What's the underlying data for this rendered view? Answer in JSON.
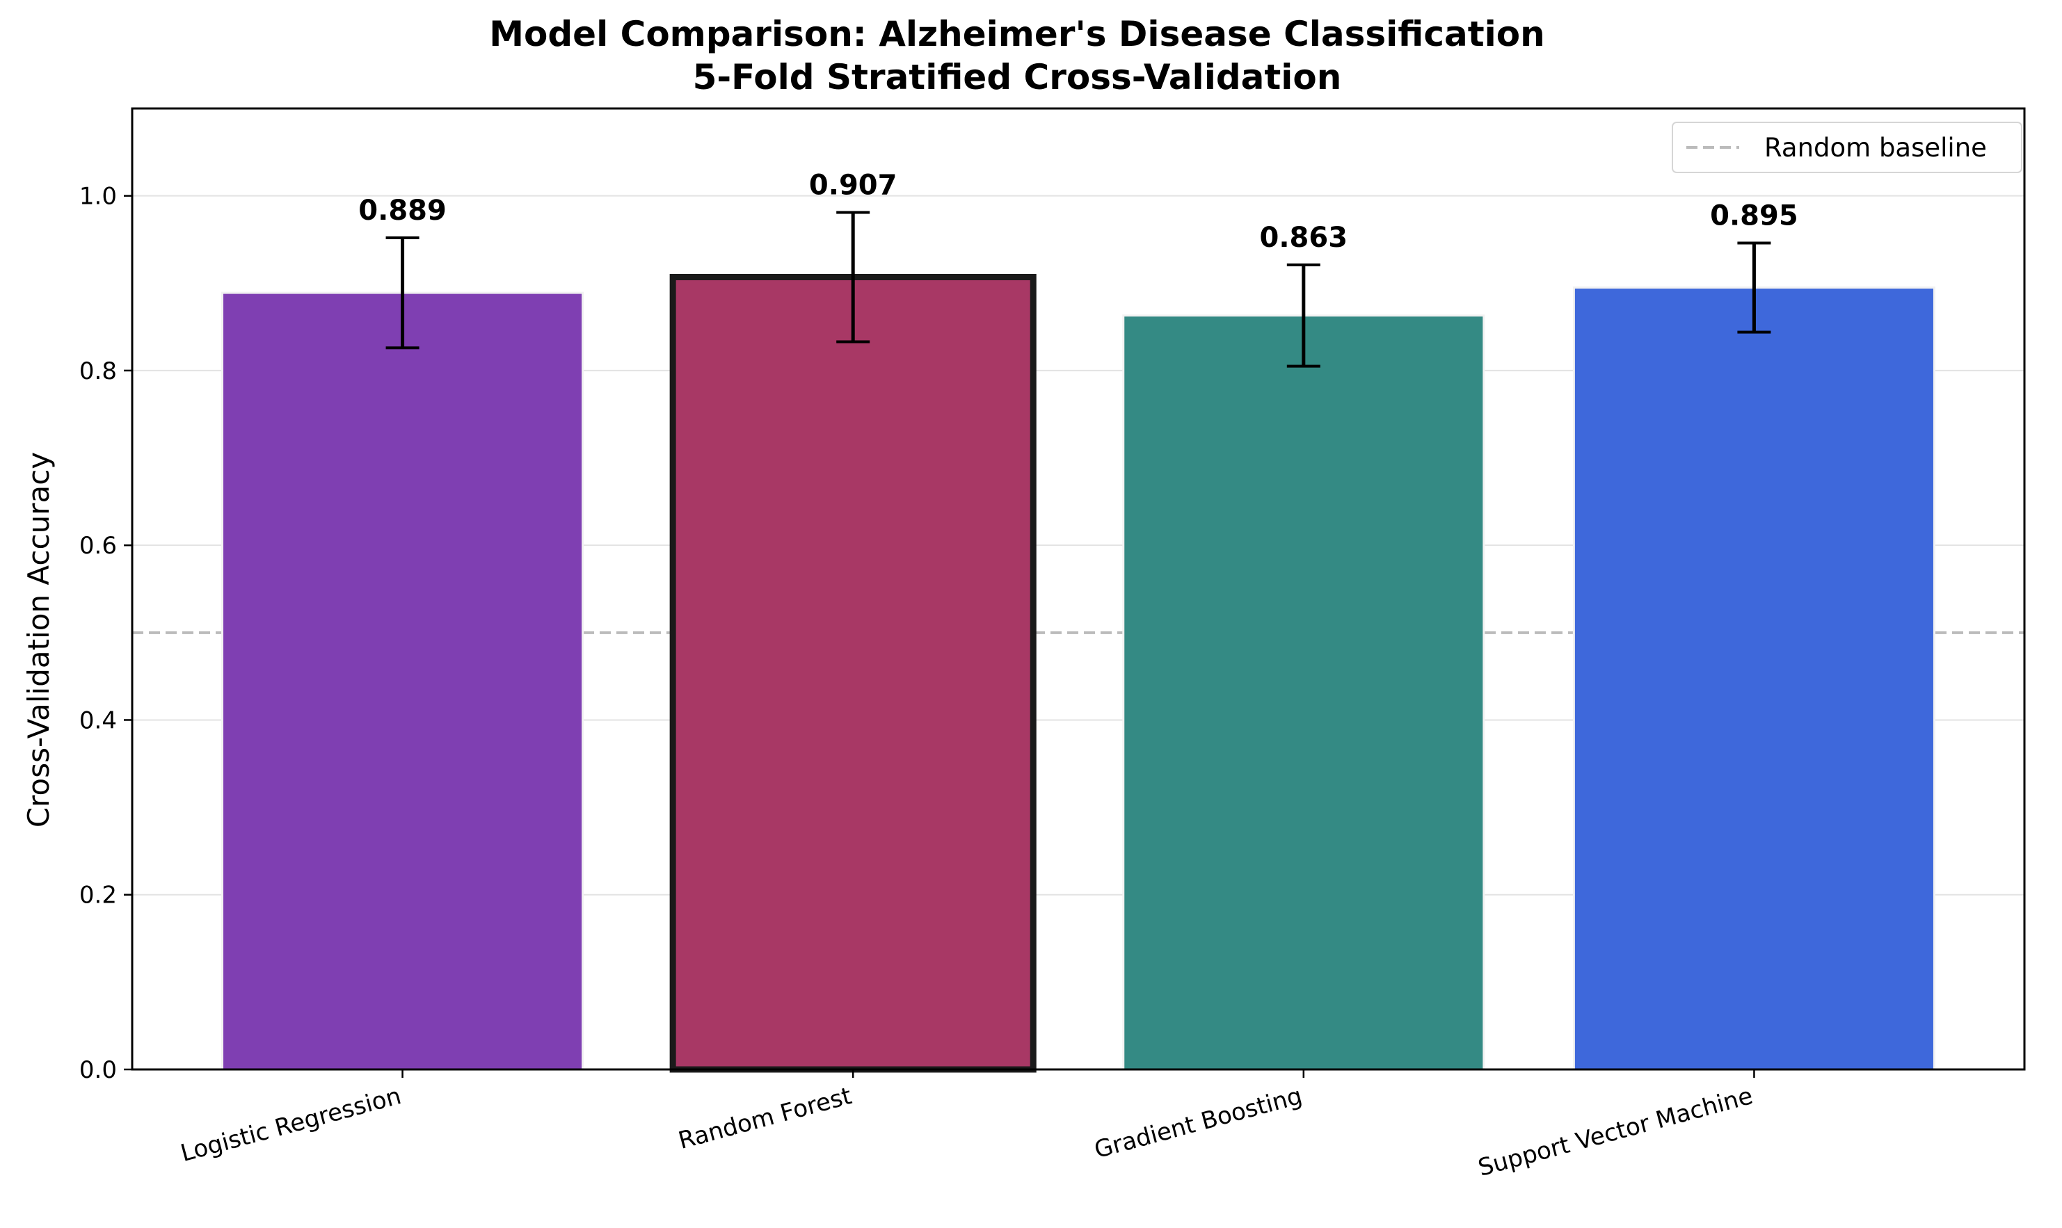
{
  "chart_data": {
    "type": "bar",
    "title": "Model Comparison: Alzheimer's Disease Classification",
    "subtitle": "5-Fold Stratified Cross-Validation",
    "xlabel": "",
    "ylabel": "Cross-Validation Accuracy",
    "ylim": [
      0,
      1.1
    ],
    "yticks": [
      0.0,
      0.2,
      0.4,
      0.6,
      0.8,
      1.0
    ],
    "ytick_labels": [
      "0.0",
      "0.2",
      "0.4",
      "0.6",
      "0.8",
      "1.0"
    ],
    "grid": "horizontal",
    "legend_position": "top-right",
    "categories": [
      "Logistic Regression",
      "Random Forest",
      "Gradient Boosting",
      "Support Vector Machine"
    ],
    "values": [
      0.889,
      0.907,
      0.863,
      0.895
    ],
    "value_labels": [
      "0.889",
      "0.907",
      "0.863",
      "0.895"
    ],
    "errors": [
      0.063,
      0.074,
      0.058,
      0.051
    ],
    "colors": [
      "#7f3fb2",
      "#a83865",
      "#348a84",
      "#3e68db"
    ],
    "highlighted": "Random Forest",
    "baseline": {
      "label": "Random baseline",
      "value": 0.5,
      "color": "#bbbbbb",
      "style": "dashed"
    }
  }
}
